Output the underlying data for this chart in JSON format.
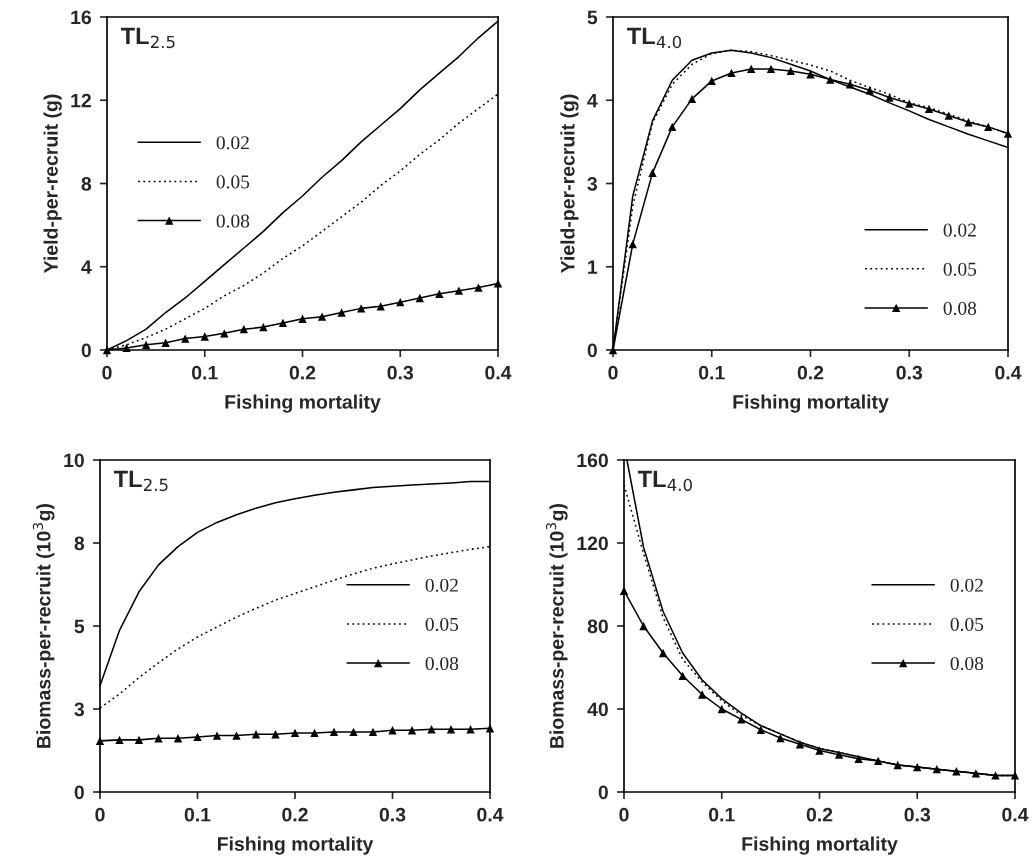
{
  "chart_data": [
    {
      "type": "line",
      "xlabel": "Fishing mortality",
      "ylabel": "Yield-per-recruit (g)",
      "annotations": [
        "TL$_{2.5}$"
      ],
      "x": [
        0,
        0.02,
        0.04,
        0.06,
        0.08,
        0.1,
        0.12,
        0.14,
        0.16,
        0.18,
        0.2,
        0.22,
        0.24,
        0.26,
        0.28,
        0.3,
        0.32,
        0.34,
        0.36,
        0.38,
        0.4
      ],
      "xlim": [
        0,
        0.4
      ],
      "xticks": [
        0,
        0.1,
        0.2,
        0.3,
        0.4
      ],
      "ylim": [
        0,
        16
      ],
      "yticks": [
        0,
        4,
        8,
        12,
        16
      ],
      "grid": false,
      "legend": "center left",
      "series": [
        {
          "name": "0.02",
          "color": "#000000",
          "line_style": "solid",
          "marker": "none",
          "values": [
            0,
            0.45,
            1.0,
            1.8,
            2.5,
            3.3,
            4.1,
            4.9,
            5.7,
            6.6,
            7.4,
            8.3,
            9.1,
            10.0,
            10.8,
            11.6,
            12.5,
            13.3,
            14.1,
            15.0,
            15.8
          ]
        },
        {
          "name": "0.05",
          "color": "#000000",
          "line_style": "dotted",
          "marker": "none",
          "values": [
            0,
            0.25,
            0.6,
            1.0,
            1.5,
            2.0,
            2.6,
            3.1,
            3.7,
            4.4,
            5.0,
            5.7,
            6.4,
            7.1,
            7.9,
            8.6,
            9.4,
            10.1,
            10.9,
            11.6,
            12.3
          ]
        },
        {
          "name": "0.08",
          "color": "#000000",
          "line_style": "solid",
          "marker": "triangle",
          "values": [
            0,
            0.1,
            0.25,
            0.35,
            0.55,
            0.65,
            0.8,
            1.0,
            1.1,
            1.3,
            1.5,
            1.6,
            1.8,
            2.0,
            2.1,
            2.3,
            2.5,
            2.7,
            2.85,
            3.0,
            3.2
          ]
        }
      ]
    },
    {
      "type": "line",
      "xlabel": "Fishing mortality",
      "ylabel": "Yield-per-recruit (g)",
      "annotations": [
        "TL$_{4.0}$"
      ],
      "x": [
        0,
        0.02,
        0.04,
        0.06,
        0.08,
        0.1,
        0.12,
        0.14,
        0.16,
        0.18,
        0.2,
        0.22,
        0.24,
        0.26,
        0.28,
        0.3,
        0.32,
        0.34,
        0.36,
        0.38,
        0.4
      ],
      "xlim": [
        0,
        0.4
      ],
      "xticks": [
        0,
        0.1,
        0.2,
        0.3,
        0.4
      ],
      "ylim": [
        0,
        5
      ],
      "yticks": [
        0,
        {
          "value": 1.25,
          "label": "1"
        },
        {
          "value": 2.5,
          "label": "3"
        },
        {
          "value": 3.75,
          "label": "4"
        },
        5
      ],
      "grid": false,
      "legend": "lower right",
      "series": [
        {
          "name": "0.02",
          "color": "#000000",
          "line_style": "solid",
          "marker": "none",
          "values": [
            0,
            2.31,
            3.44,
            4.05,
            4.35,
            4.46,
            4.5,
            4.46,
            4.39,
            4.29,
            4.19,
            4.06,
            3.95,
            3.84,
            3.71,
            3.59,
            3.46,
            3.35,
            3.24,
            3.14,
            3.04
          ]
        },
        {
          "name": "0.05",
          "color": "#000000",
          "line_style": "dotted",
          "marker": "none",
          "values": [
            0,
            2.16,
            3.41,
            3.99,
            4.29,
            4.45,
            4.5,
            4.48,
            4.42,
            4.35,
            4.28,
            4.19,
            4.05,
            3.94,
            3.84,
            3.71,
            3.64,
            3.54,
            3.44,
            3.35,
            3.25
          ]
        },
        {
          "name": "0.08",
          "color": "#000000",
          "line_style": "solid",
          "marker": "triangle",
          "values": [
            0,
            1.59,
            2.66,
            3.35,
            3.77,
            4.04,
            4.16,
            4.22,
            4.22,
            4.19,
            4.14,
            4.06,
            3.99,
            3.9,
            3.79,
            3.7,
            3.62,
            3.52,
            3.42,
            3.35,
            3.25
          ]
        }
      ]
    },
    {
      "type": "line",
      "xlabel": "Fishing mortality",
      "ylabel": "Biomass-per-recruit (10$^{3}$g)",
      "annotations": [
        "TL$_{2.5}$"
      ],
      "x": [
        0,
        0.02,
        0.04,
        0.06,
        0.08,
        0.1,
        0.12,
        0.14,
        0.16,
        0.18,
        0.2,
        0.22,
        0.24,
        0.26,
        0.28,
        0.3,
        0.32,
        0.34,
        0.36,
        0.38,
        0.4
      ],
      "xlim": [
        0,
        0.4
      ],
      "xticks": [
        0,
        0.1,
        0.2,
        0.3,
        0.4
      ],
      "ylim": [
        0,
        10
      ],
      "yticks": [
        0,
        {
          "value": 2.5,
          "label": "3"
        },
        5,
        {
          "value": 7.5,
          "label": "8"
        },
        10
      ],
      "grid": false,
      "legend": "center right",
      "series": [
        {
          "name": "0.02",
          "color": "#000000",
          "line_style": "solid",
          "marker": "none",
          "values": [
            3.2,
            4.87,
            6.03,
            6.84,
            7.39,
            7.82,
            8.12,
            8.35,
            8.55,
            8.71,
            8.83,
            8.94,
            9.03,
            9.1,
            9.17,
            9.21,
            9.25,
            9.28,
            9.31,
            9.35,
            9.35
          ]
        },
        {
          "name": "0.05",
          "color": "#000000",
          "line_style": "dotted",
          "marker": "none",
          "values": [
            2.53,
            2.95,
            3.45,
            3.89,
            4.31,
            4.67,
            4.97,
            5.27,
            5.53,
            5.78,
            5.98,
            6.18,
            6.38,
            6.57,
            6.74,
            6.87,
            6.99,
            7.11,
            7.21,
            7.31,
            7.39
          ]
        },
        {
          "name": "0.08",
          "color": "#000000",
          "line_style": "solid",
          "marker": "triangle",
          "values": [
            1.54,
            1.57,
            1.57,
            1.62,
            1.62,
            1.66,
            1.7,
            1.7,
            1.74,
            1.74,
            1.78,
            1.78,
            1.81,
            1.81,
            1.81,
            1.86,
            1.86,
            1.89,
            1.89,
            1.89,
            1.92
          ]
        }
      ]
    },
    {
      "type": "line",
      "xlabel": "Fishing mortality",
      "ylabel": "Biomass-per-recruit (10$^{3}$g)",
      "annotations": [
        "TL$_{4.0}$"
      ],
      "x": [
        0,
        0.02,
        0.04,
        0.06,
        0.08,
        0.1,
        0.12,
        0.14,
        0.16,
        0.18,
        0.2,
        0.22,
        0.24,
        0.26,
        0.28,
        0.3,
        0.32,
        0.34,
        0.36,
        0.38,
        0.4
      ],
      "xlim": [
        0,
        0.4
      ],
      "xticks": [
        0,
        0.1,
        0.2,
        0.3,
        0.4
      ],
      "ylim": [
        0,
        160
      ],
      "yticks": [
        0,
        40,
        80,
        120,
        160
      ],
      "grid": false,
      "legend": "center right",
      "series": [
        {
          "name": "0.02",
          "color": "#000000",
          "line_style": "solid",
          "marker": "none",
          "x": [
            0.003,
            0.02,
            0.04,
            0.06,
            0.08,
            0.1,
            0.12,
            0.14,
            0.16,
            0.18,
            0.2,
            0.22,
            0.24,
            0.26,
            0.28,
            0.3,
            0.32,
            0.34,
            0.36,
            0.38,
            0.4
          ],
          "values": [
            160,
            118,
            87,
            67,
            54,
            45,
            38,
            32,
            28,
            24,
            21,
            19,
            17,
            15,
            13,
            12,
            11,
            10,
            9,
            8,
            8
          ]
        },
        {
          "name": "0.05",
          "color": "#000000",
          "line_style": "dotted",
          "marker": "none",
          "values": [
            148,
            115,
            84,
            64,
            53,
            44,
            37,
            32,
            28,
            24,
            21,
            19,
            17,
            15,
            13,
            12,
            11,
            10,
            9,
            8,
            8
          ]
        },
        {
          "name": "0.08",
          "color": "#000000",
          "line_style": "solid",
          "marker": "triangle",
          "values": [
            97,
            80,
            67,
            56,
            47,
            40,
            35,
            30,
            26,
            23,
            20,
            18,
            16,
            15,
            13,
            12,
            11,
            10,
            9,
            8,
            8
          ]
        }
      ]
    }
  ]
}
